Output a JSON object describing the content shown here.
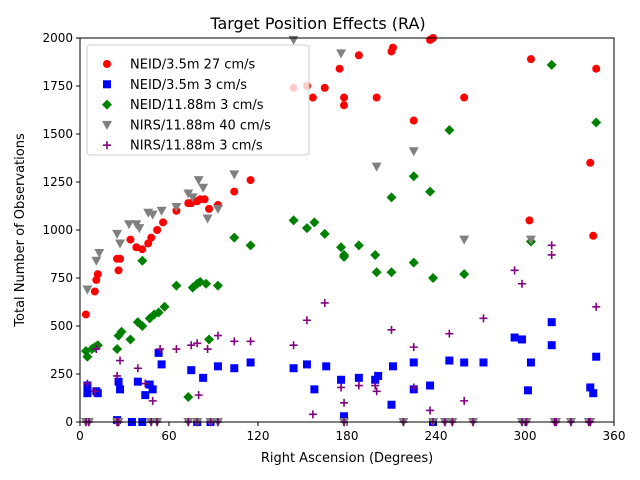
{
  "chart_data": {
    "type": "scatter",
    "title": "Target Position Effects (RA)",
    "xlabel": "Right Ascension (Degrees)",
    "ylabel": "Total Number of Observations",
    "xlim": [
      0,
      360
    ],
    "ylim": [
      0,
      2000
    ],
    "xticks": [
      0,
      60,
      120,
      180,
      240,
      300,
      360
    ],
    "yticks": [
      0,
      250,
      500,
      750,
      1000,
      1250,
      1500,
      1750,
      2000
    ],
    "grid": false,
    "legend_position": "top-left",
    "series": [
      {
        "name": "NEID/3.5m 27 cm/s",
        "marker": "circle",
        "color": "#ff0000",
        "points": [
          [
            4,
            560
          ],
          [
            10,
            680
          ],
          [
            11,
            740
          ],
          [
            12,
            770
          ],
          [
            25,
            850
          ],
          [
            26,
            790
          ],
          [
            27,
            850
          ],
          [
            34,
            950
          ],
          [
            38,
            910
          ],
          [
            42,
            900
          ],
          [
            46,
            930
          ],
          [
            48,
            960
          ],
          [
            52,
            1000
          ],
          [
            56,
            1040
          ],
          [
            65,
            1100
          ],
          [
            73,
            1140
          ],
          [
            75,
            1140
          ],
          [
            79,
            1150
          ],
          [
            81,
            1160
          ],
          [
            84,
            1160
          ],
          [
            87,
            1110
          ],
          [
            93,
            1130
          ],
          [
            104,
            1200
          ],
          [
            115,
            1260
          ],
          [
            144,
            1740
          ],
          [
            153,
            1750
          ],
          [
            157,
            1690
          ],
          [
            165,
            1740
          ],
          [
            175,
            1840
          ],
          [
            178,
            1650
          ],
          [
            178,
            1690
          ],
          [
            188,
            1910
          ],
          [
            200,
            1690
          ],
          [
            210,
            1930
          ],
          [
            211,
            1950
          ],
          [
            225,
            1570
          ],
          [
            236,
            1990
          ],
          [
            238,
            2000
          ],
          [
            259,
            1690
          ],
          [
            303,
            1050
          ],
          [
            304,
            1890
          ],
          [
            344,
            1350
          ],
          [
            346,
            970
          ],
          [
            348,
            1840
          ]
        ]
      },
      {
        "name": "NEID/3.5m 3 cm/s",
        "marker": "square",
        "color": "#0000ff",
        "points": [
          [
            5,
            190
          ],
          [
            5,
            150
          ],
          [
            11,
            160
          ],
          [
            12,
            150
          ],
          [
            25,
            10
          ],
          [
            26,
            210
          ],
          [
            27,
            170
          ],
          [
            35,
            0
          ],
          [
            39,
            210
          ],
          [
            42,
            0
          ],
          [
            44,
            140
          ],
          [
            47,
            195
          ],
          [
            49,
            170
          ],
          [
            53,
            360
          ],
          [
            55,
            300
          ],
          [
            75,
            270
          ],
          [
            79,
            0
          ],
          [
            83,
            230
          ],
          [
            88,
            0
          ],
          [
            93,
            290
          ],
          [
            104,
            280
          ],
          [
            115,
            310
          ],
          [
            144,
            280
          ],
          [
            153,
            300
          ],
          [
            158,
            170
          ],
          [
            166,
            290
          ],
          [
            176,
            220
          ],
          [
            178,
            30
          ],
          [
            188,
            230
          ],
          [
            199,
            220
          ],
          [
            201,
            240
          ],
          [
            210,
            90
          ],
          [
            211,
            290
          ],
          [
            225,
            170
          ],
          [
            225,
            310
          ],
          [
            236,
            190
          ],
          [
            238,
            0
          ],
          [
            249,
            320
          ],
          [
            259,
            310
          ],
          [
            272,
            310
          ],
          [
            293,
            440
          ],
          [
            298,
            430
          ],
          [
            302,
            165
          ],
          [
            304,
            310
          ],
          [
            318,
            520
          ],
          [
            318,
            400
          ],
          [
            344,
            180
          ],
          [
            346,
            150
          ],
          [
            348,
            340
          ]
        ]
      },
      {
        "name": "NEID/11.88m 3 cm/s",
        "marker": "diamond",
        "color": "#008000",
        "points": [
          [
            4,
            370
          ],
          [
            5,
            340
          ],
          [
            8,
            380
          ],
          [
            10,
            390
          ],
          [
            12,
            400
          ],
          [
            25,
            380
          ],
          [
            26,
            450
          ],
          [
            28,
            470
          ],
          [
            34,
            430
          ],
          [
            39,
            520
          ],
          [
            42,
            840
          ],
          [
            42,
            500
          ],
          [
            47,
            540
          ],
          [
            50,
            560
          ],
          [
            53,
            570
          ],
          [
            57,
            600
          ],
          [
            65,
            710
          ],
          [
            73,
            130
          ],
          [
            76,
            700
          ],
          [
            79,
            720
          ],
          [
            81,
            730
          ],
          [
            85,
            720
          ],
          [
            87,
            430
          ],
          [
            93,
            710
          ],
          [
            104,
            960
          ],
          [
            115,
            920
          ],
          [
            144,
            1050
          ],
          [
            153,
            1010
          ],
          [
            158,
            1040
          ],
          [
            165,
            980
          ],
          [
            176,
            910
          ],
          [
            178,
            870
          ],
          [
            178,
            860
          ],
          [
            188,
            920
          ],
          [
            199,
            870
          ],
          [
            200,
            780
          ],
          [
            210,
            780
          ],
          [
            210,
            1170
          ],
          [
            225,
            1280
          ],
          [
            225,
            830
          ],
          [
            236,
            1200
          ],
          [
            238,
            750
          ],
          [
            249,
            1520
          ],
          [
            259,
            770
          ],
          [
            304,
            940
          ],
          [
            318,
            1860
          ],
          [
            348,
            1560
          ]
        ]
      },
      {
        "name": "NIRS/11.88m 40 cm/s",
        "marker": "triangle-down",
        "color": "#808080",
        "points": [
          [
            5,
            690
          ],
          [
            11,
            840
          ],
          [
            13,
            880
          ],
          [
            25,
            980
          ],
          [
            27,
            930
          ],
          [
            33,
            1030
          ],
          [
            38,
            1030
          ],
          [
            40,
            1010
          ],
          [
            46,
            1090
          ],
          [
            49,
            1080
          ],
          [
            55,
            1100
          ],
          [
            65,
            1120
          ],
          [
            73,
            1190
          ],
          [
            76,
            1170
          ],
          [
            80,
            1260
          ],
          [
            83,
            1220
          ],
          [
            86,
            1060
          ],
          [
            93,
            1110
          ],
          [
            104,
            1290
          ],
          [
            144,
            1990
          ],
          [
            176,
            1920
          ],
          [
            200,
            1330
          ],
          [
            225,
            1410
          ],
          [
            259,
            950
          ],
          [
            304,
            950
          ],
          [
            4,
            0
          ],
          [
            6,
            0
          ],
          [
            25,
            0
          ],
          [
            26,
            0
          ],
          [
            48,
            0
          ],
          [
            52,
            0
          ],
          [
            73,
            0
          ],
          [
            79,
            0
          ],
          [
            88,
            0
          ],
          [
            93,
            0
          ],
          [
            178,
            0
          ],
          [
            218,
            0
          ],
          [
            238,
            0
          ],
          [
            246,
            0
          ],
          [
            251,
            0
          ],
          [
            265,
            0
          ],
          [
            298,
            0
          ],
          [
            301,
            0
          ],
          [
            320,
            0
          ],
          [
            321,
            0
          ],
          [
            331,
            0
          ],
          [
            343,
            0
          ],
          [
            344,
            0
          ]
        ]
      },
      {
        "name": "NIRS/11.88m 3 cm/s",
        "marker": "plus",
        "color": "#800080",
        "points": [
          [
            5,
            200
          ],
          [
            10,
            160
          ],
          [
            11,
            380
          ],
          [
            25,
            240
          ],
          [
            27,
            320
          ],
          [
            39,
            280
          ],
          [
            44,
            200
          ],
          [
            49,
            110
          ],
          [
            54,
            380
          ],
          [
            65,
            380
          ],
          [
            75,
            400
          ],
          [
            79,
            410
          ],
          [
            80,
            140
          ],
          [
            86,
            380
          ],
          [
            93,
            450
          ],
          [
            104,
            420
          ],
          [
            115,
            420
          ],
          [
            144,
            400
          ],
          [
            153,
            530
          ],
          [
            157,
            40
          ],
          [
            165,
            620
          ],
          [
            176,
            180
          ],
          [
            178,
            100
          ],
          [
            188,
            190
          ],
          [
            199,
            190
          ],
          [
            200,
            160
          ],
          [
            210,
            480
          ],
          [
            225,
            390
          ],
          [
            225,
            180
          ],
          [
            236,
            60
          ],
          [
            249,
            460
          ],
          [
            259,
            110
          ],
          [
            272,
            540
          ],
          [
            293,
            790
          ],
          [
            298,
            720
          ],
          [
            318,
            920
          ],
          [
            318,
            870
          ],
          [
            348,
            600
          ],
          [
            4,
            0
          ],
          [
            6,
            0
          ],
          [
            25,
            0
          ],
          [
            26,
            0
          ],
          [
            48,
            0
          ],
          [
            52,
            0
          ],
          [
            73,
            0
          ],
          [
            79,
            0
          ],
          [
            88,
            0
          ],
          [
            93,
            0
          ],
          [
            178,
            0
          ],
          [
            218,
            0
          ],
          [
            238,
            0
          ],
          [
            246,
            0
          ],
          [
            251,
            0
          ],
          [
            265,
            0
          ],
          [
            298,
            0
          ],
          [
            301,
            0
          ],
          [
            320,
            0
          ],
          [
            321,
            0
          ],
          [
            331,
            0
          ],
          [
            343,
            0
          ],
          [
            344,
            0
          ]
        ]
      }
    ]
  }
}
